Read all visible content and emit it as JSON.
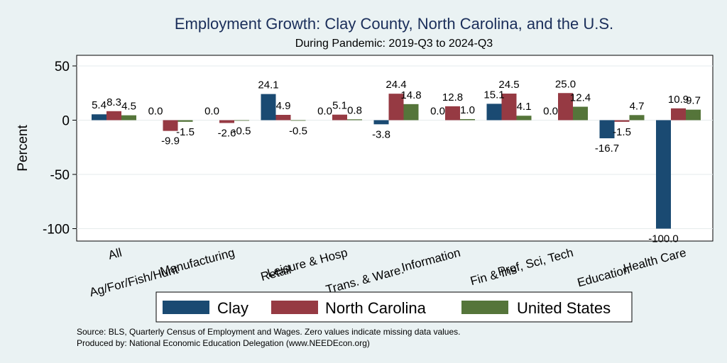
{
  "chart_data": {
    "type": "bar",
    "title": "Employment Growth: Clay County, North Carolina, and the U.S.",
    "subtitle": "During Pandemic: 2019-Q3 to 2024-Q3",
    "ylabel": "Percent",
    "xlabel": "",
    "ylim": [
      -110,
      55
    ],
    "yticks": [
      50,
      0,
      -50,
      -100
    ],
    "categories": [
      "All",
      "Ag/For/Fish/Hunt",
      "Manufacturing",
      "Retail",
      "Leisure & Hosp",
      "Trans. & Ware.",
      "Information",
      "Fin & Ins",
      "Prof, Sci, Tech",
      "Education",
      "Health Care"
    ],
    "series": [
      {
        "name": "Clay",
        "color": "#1a4a72",
        "values": [
          5.4,
          0.0,
          0.0,
          24.1,
          0.0,
          -3.8,
          0.0,
          15.1,
          0.0,
          -16.7,
          -100.0
        ],
        "labels": [
          "5.4",
          "0.0",
          "0.0",
          "24.1",
          "0.0",
          "-3.8",
          "0.0",
          "15.1",
          "0.0",
          "-16.7",
          "-100.0"
        ]
      },
      {
        "name": "North Carolina",
        "color": "#963a43",
        "values": [
          8.3,
          -9.9,
          -2.6,
          4.9,
          5.1,
          24.4,
          12.8,
          24.5,
          25.0,
          -1.5,
          10.9
        ],
        "labels": [
          "8.3",
          "-9.9",
          "-2.6",
          "4.9",
          "5.1",
          "24.4",
          "12.8",
          "24.5",
          "25.0",
          "-1.5",
          "10.9"
        ]
      },
      {
        "name": "United States",
        "color": "#55753a",
        "values": [
          4.5,
          -1.5,
          -0.5,
          -0.5,
          0.8,
          14.8,
          1.0,
          4.1,
          12.4,
          4.7,
          9.7
        ],
        "labels": [
          "4.5",
          "-1.5",
          "-0.5",
          "-0.5",
          "0.8",
          "14.8",
          "1.0",
          "4.1",
          "12.4",
          "4.7",
          "9.7"
        ]
      }
    ],
    "legend_position": "bottom",
    "grid": true
  },
  "footnote": {
    "source": "Source: BLS, Quarterly Census of Employment and Wages. Zero values indicate missing data values.",
    "produced": "Produced by: National Economic Education Delegation (www.NEEDEcon.org)"
  }
}
